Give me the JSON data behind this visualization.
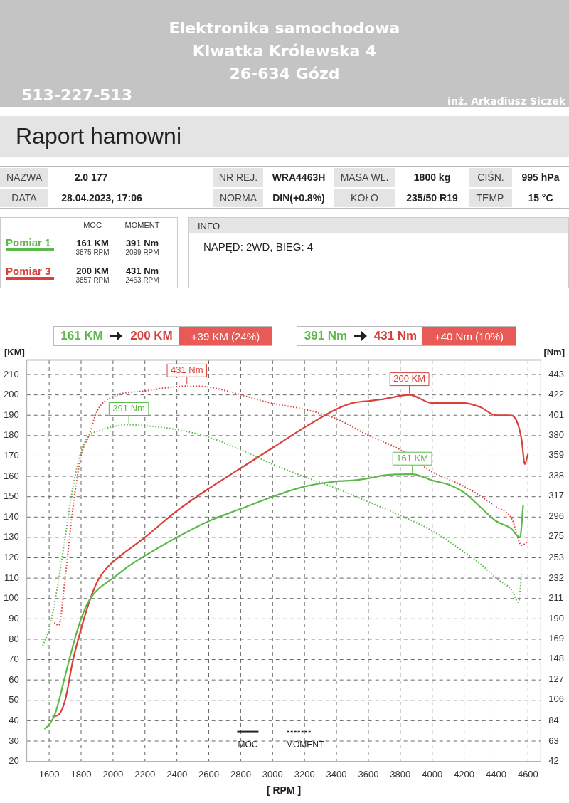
{
  "chart_data": {
    "type": "line",
    "title": "Raport hamowni",
    "xlabel": "[ RPM ]",
    "ylabel": "[KM]",
    "y2label": "[Nm]",
    "xlim": [
      1460,
      4680
    ],
    "xticks": [
      1600,
      1800,
      2000,
      2200,
      2400,
      2600,
      2800,
      3000,
      3200,
      3400,
      3600,
      3800,
      4000,
      4200,
      4400,
      4600
    ],
    "ylim": [
      20,
      217
    ],
    "yticks": [
      20,
      30,
      40,
      50,
      60,
      70,
      80,
      90,
      100,
      110,
      120,
      130,
      140,
      150,
      160,
      170,
      180,
      190,
      200,
      210
    ],
    "y2lim": [
      42,
      457.8
    ],
    "y2ticks": [
      42,
      63,
      84,
      106,
      127,
      148,
      169,
      190,
      211,
      232,
      253,
      275,
      296,
      317,
      338,
      359,
      380,
      401,
      422,
      443
    ],
    "grid": true,
    "legend": "top left",
    "marker": "none",
    "series": [
      {
        "name": "Pomiar 1",
        "color": "#5cb84a",
        "line_style": "solid",
        "x": [
          1570,
          1600,
          1640,
          1700,
          1760,
          1800,
          1850,
          1900,
          2000,
          2100,
          2200,
          2400,
          2600,
          2800,
          3000,
          3200,
          3400,
          3500,
          3600,
          3700,
          3875,
          3950,
          4000,
          4100,
          4200,
          4300,
          4400,
          4500,
          4530,
          4550,
          4570
        ],
        "values": [
          36,
          38,
          44,
          62,
          80,
          90,
          99,
          104,
          110,
          116,
          121,
          130,
          138,
          144,
          150,
          155,
          157.5,
          158,
          159,
          160.5,
          161,
          159.5,
          158,
          156,
          152,
          145,
          138,
          134,
          131,
          130,
          146
        ],
        "value_labels": [
          null,
          null,
          null,
          null,
          null,
          null,
          null,
          null,
          null,
          null,
          null,
          null,
          null,
          null,
          null,
          null,
          null,
          null,
          null,
          null,
          "161 KM",
          null,
          null,
          null,
          null,
          null,
          null,
          null,
          null,
          null,
          null
        ]
      },
      {
        "name": "Pomiar 3",
        "color": "#d9403a",
        "line_style": "solid",
        "x": [
          1620,
          1660,
          1700,
          1750,
          1800,
          1850,
          1900,
          1950,
          2000,
          2200,
          2400,
          2600,
          2800,
          3000,
          3200,
          3400,
          3500,
          3600,
          3700,
          3857,
          4000,
          4100,
          4200,
          4300,
          4400,
          4480,
          4530,
          4560,
          4580,
          4600
        ],
        "values": [
          42,
          43,
          50,
          70,
          85,
          98,
          108,
          114,
          118,
          130,
          143,
          154,
          164,
          174,
          184,
          193,
          196,
          197,
          198,
          200,
          196,
          196,
          196,
          194,
          190,
          190,
          187,
          178,
          166,
          171
        ],
        "value_labels": [
          null,
          null,
          null,
          null,
          null,
          null,
          null,
          null,
          null,
          null,
          null,
          null,
          null,
          null,
          null,
          null,
          null,
          null,
          null,
          "200 KM",
          null,
          null,
          null,
          null,
          null,
          null,
          null,
          null,
          null,
          null
        ]
      },
      {
        "color": "#5cb84a",
        "line_style": "dotted",
        "axis": "y2",
        "x": [
          1560,
          1600,
          1650,
          1700,
          1750,
          1800,
          1850,
          1900,
          2000,
          2099,
          2200,
          2400,
          2600,
          2800,
          3000,
          3200,
          3400,
          3600,
          3800,
          4000,
          4200,
          4300,
          4400,
          4500,
          4540,
          4560
        ],
        "values": [
          162,
          179,
          221,
          274,
          327,
          363,
          380,
          384,
          389,
          391,
          390,
          386,
          378,
          365,
          350,
          337,
          325,
          311,
          297,
          281,
          259,
          247,
          232,
          219,
          207,
          236
        ],
        "value_labels": [
          null,
          null,
          null,
          null,
          null,
          null,
          null,
          null,
          null,
          "391 Nm",
          null,
          null,
          null,
          null,
          null,
          null,
          null,
          null,
          null,
          null,
          null,
          null,
          null,
          null,
          null,
          null
        ]
      },
      {
        "color": "#d9403a",
        "line_style": "dotted",
        "axis": "y2",
        "x": [
          1620,
          1660,
          1700,
          1750,
          1800,
          1850,
          1900,
          2000,
          2200,
          2463,
          2600,
          2800,
          3000,
          3200,
          3400,
          3600,
          3800,
          4000,
          4200,
          4400,
          4500,
          4560,
          4600
        ],
        "values": [
          188,
          183,
          232,
          306,
          359,
          380,
          405,
          420,
          426,
          431,
          430,
          422,
          413,
          407,
          397,
          380,
          365,
          342,
          327,
          306,
          293,
          266,
          270
        ],
        "value_labels": [
          null,
          null,
          null,
          null,
          null,
          null,
          null,
          null,
          null,
          "431 Nm",
          null,
          null,
          null,
          null,
          null,
          null,
          null,
          null,
          null,
          null,
          null,
          null,
          null
        ]
      }
    ],
    "annotations": [
      "Elektronika samochodowa",
      "Klwatka Królewska 4",
      "26-634 Gózd",
      "513-227-513",
      "inż. Arkadiusz Siczek",
      "NAZWA",
      "2.0 177",
      "DATA",
      "28.04.2023, 17:06",
      "NR REJ.",
      "WRA4463H",
      "NORMA",
      "DIN(+0.8%)",
      "MASA WŁ.",
      "1800 kg",
      "KOŁO",
      "235/50 R19",
      "CIŚN.",
      "995 hPa",
      "TEMP.",
      "15 °C",
      "MOC",
      "MOMENT",
      "161 KM",
      "3875 RPM",
      "391 Nm",
      "2099 RPM",
      "200 KM",
      "3857 RPM",
      "431 Nm",
      "2463 RPM",
      "INFO",
      "NAPĘD: 2WD,  BIEG: 4",
      "161 KM",
      "200 KM",
      "+39 KM  (24%)",
      "391 Nm",
      "431 Nm",
      "+40 Nm  (10%)",
      "MOC",
      "MOMENT"
    ]
  }
}
